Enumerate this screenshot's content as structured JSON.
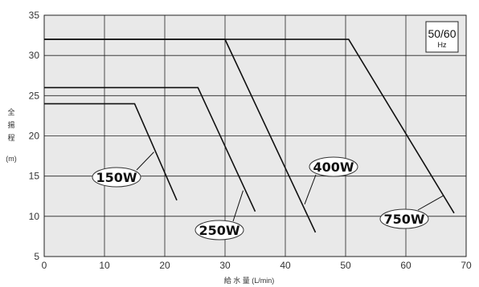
{
  "chart_data": {
    "type": "line",
    "title": "",
    "xlabel": "給 水 量 (L/min)",
    "ylabel": [
      "全",
      "揚",
      "程",
      "(m)"
    ],
    "xlim": [
      0,
      70
    ],
    "ylim": [
      5,
      35
    ],
    "xticks": [
      0,
      10,
      20,
      30,
      40,
      50,
      60,
      70
    ],
    "yticks": [
      5,
      10,
      15,
      20,
      25,
      30,
      35
    ],
    "grid": true,
    "frequency_label": {
      "main": "50/60",
      "sub": "Hz"
    },
    "series": [
      {
        "name": "150W",
        "points": [
          [
            0,
            24
          ],
          [
            15,
            24
          ],
          [
            22,
            12
          ]
        ]
      },
      {
        "name": "250W",
        "points": [
          [
            0,
            26
          ],
          [
            25.5,
            26
          ],
          [
            35,
            10.6
          ]
        ]
      },
      {
        "name": "400W",
        "points": [
          [
            0,
            32
          ],
          [
            30,
            32
          ],
          [
            45,
            8
          ]
        ]
      },
      {
        "name": "750W",
        "points": [
          [
            0,
            32
          ],
          [
            50.5,
            32
          ],
          [
            68,
            10.4
          ]
        ]
      }
    ],
    "annotations": [
      {
        "series": "150W",
        "label": "150W",
        "anchor": [
          18.2,
          18
        ]
      },
      {
        "series": "250W",
        "label": "250W",
        "anchor": [
          33,
          13.2
        ]
      },
      {
        "series": "400W",
        "label": "400W",
        "anchor": [
          43.2,
          11.5
        ]
      },
      {
        "series": "750W",
        "label": "750W",
        "anchor": [
          66.3,
          12.6
        ]
      }
    ]
  }
}
